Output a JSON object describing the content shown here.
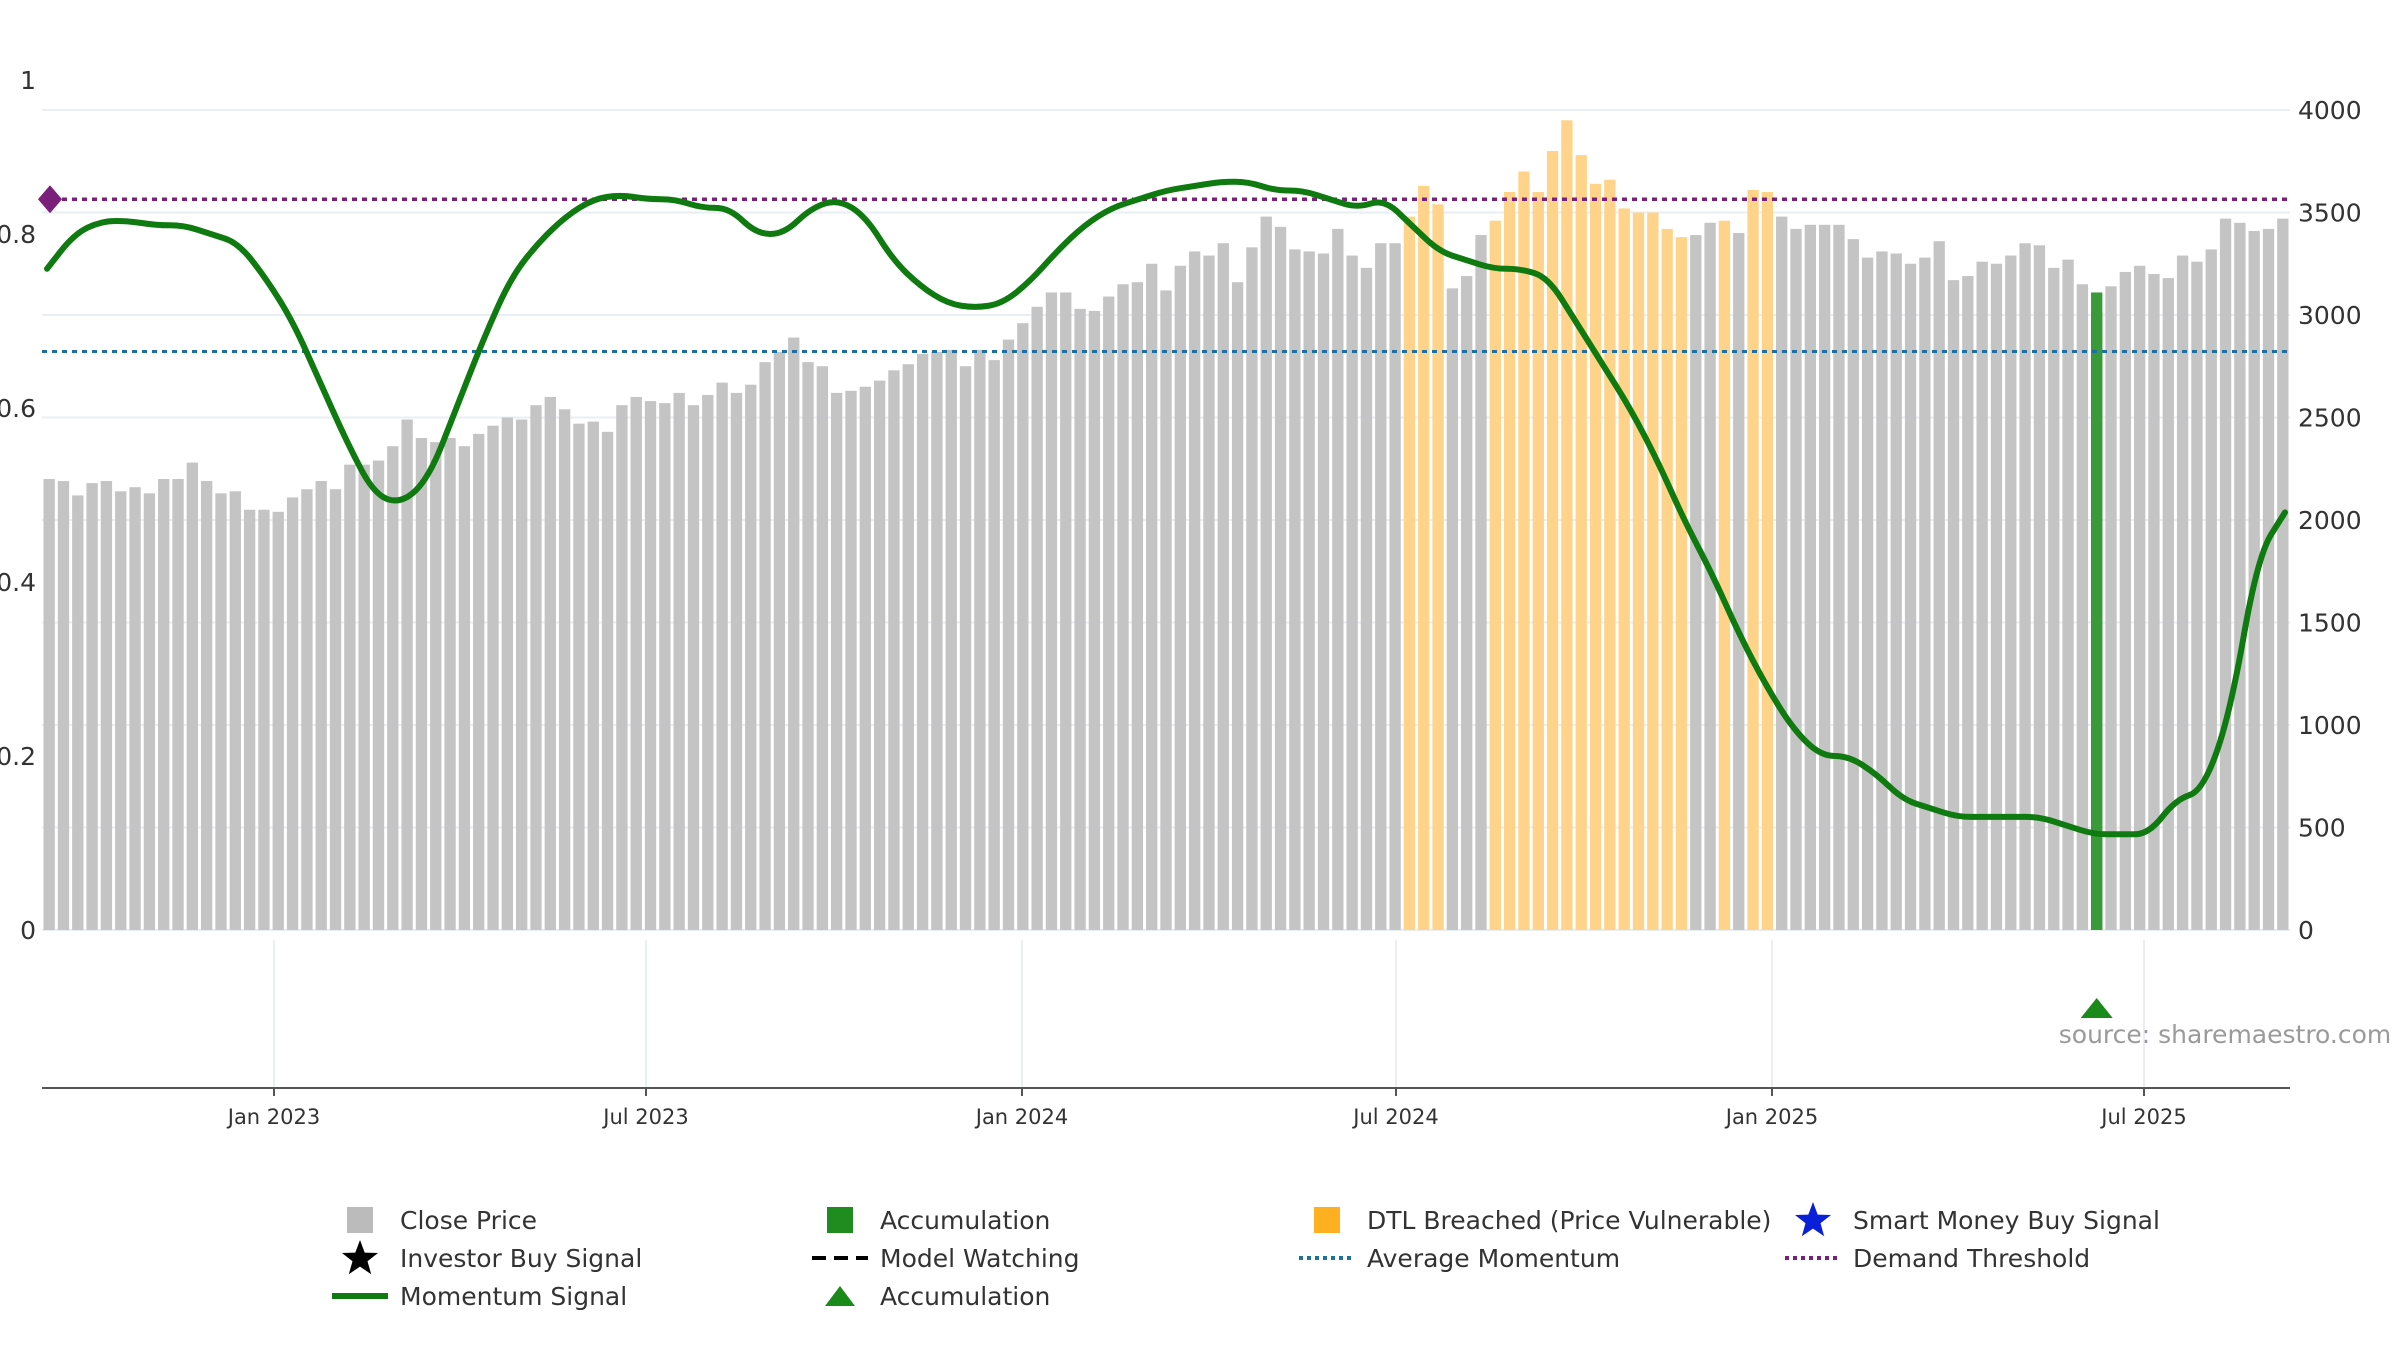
{
  "chart_data": {
    "type": "bar+line",
    "source_label": "source: sharemaestro.com",
    "x_ticks": [
      "Jan 2023",
      "Jul 2023",
      "Jan 2024",
      "Jul 2024",
      "Jan 2025",
      "Jul 2025"
    ],
    "left_axis": {
      "ticks": [
        "0",
        "0.2",
        "0.4",
        "0.6",
        "0.8",
        "1"
      ],
      "range": [
        0,
        1
      ]
    },
    "right_axis": {
      "ticks": [
        "0",
        "500",
        "1000",
        "1500",
        "2000",
        "2500",
        "3000",
        "3500",
        "4000"
      ],
      "range": [
        0,
        4000
      ]
    },
    "close_price_weekly": [
      2200,
      2190,
      2120,
      2180,
      2190,
      2140,
      2160,
      2130,
      2200,
      2200,
      2280,
      2190,
      2130,
      2140,
      2050,
      2050,
      2040,
      2110,
      2150,
      2190,
      2150,
      2270,
      2270,
      2290,
      2360,
      2490,
      2400,
      2380,
      2400,
      2360,
      2420,
      2460,
      2500,
      2490,
      2560,
      2600,
      2540,
      2470,
      2480,
      2430,
      2560,
      2600,
      2580,
      2570,
      2620,
      2560,
      2610,
      2670,
      2620,
      2660,
      2770,
      2820,
      2890,
      2770,
      2750,
      2620,
      2630,
      2650,
      2680,
      2730,
      2760,
      2810,
      2820,
      2830,
      2750,
      2830,
      2780,
      2880,
      2960,
      3040,
      3110,
      3110,
      3030,
      3020,
      3090,
      3150,
      3160,
      3250,
      3120,
      3240,
      3310,
      3290,
      3350,
      3160,
      3330,
      3480,
      3430,
      3320,
      3310,
      3300,
      3420,
      3290,
      3230,
      3350,
      3350,
      3480,
      3630,
      3540,
      3130,
      3190,
      3390,
      3460,
      3600,
      3700,
      3600,
      3800,
      3950,
      3780,
      3640,
      3660,
      3520,
      3500,
      3500,
      3420,
      3380,
      3390,
      3450,
      3460,
      3400,
      3610,
      3600,
      3480,
      3420,
      3440,
      3440,
      3440,
      3370,
      3280,
      3310,
      3300,
      3250,
      3280,
      3360,
      3170,
      3190,
      3260,
      3250,
      3290,
      3350,
      3340,
      3230,
      3270,
      3150,
      3110,
      3140,
      3210,
      3240,
      3200,
      3180,
      3290,
      3260,
      3320,
      3470,
      3450,
      3410,
      3420,
      3470
    ],
    "dtl_breached_weeks": [
      95,
      96,
      97,
      101,
      102,
      103,
      104,
      105,
      106,
      107,
      108,
      109,
      110,
      111,
      112,
      113,
      114,
      117,
      119,
      120
    ],
    "accumulation_weeks": [
      143
    ],
    "accumulation_marker_weeks": [
      143
    ],
    "momentum_signal": [
      0.76,
      0.8,
      0.815,
      0.815,
      0.81,
      0.81,
      0.8,
      0.79,
      0.75,
      0.7,
      0.63,
      0.56,
      0.5,
      0.49,
      0.52,
      0.6,
      0.68,
      0.75,
      0.79,
      0.82,
      0.84,
      0.845,
      0.84,
      0.84,
      0.83,
      0.83,
      0.8,
      0.8,
      0.83,
      0.84,
      0.82,
      0.77,
      0.74,
      0.72,
      0.715,
      0.72,
      0.745,
      0.78,
      0.81,
      0.83,
      0.84,
      0.85,
      0.855,
      0.86,
      0.86,
      0.85,
      0.85,
      0.84,
      0.83,
      0.84,
      0.81,
      0.78,
      0.77,
      0.76,
      0.76,
      0.75,
      0.7,
      0.65,
      0.6,
      0.54,
      0.47,
      0.41,
      0.34,
      0.28,
      0.23,
      0.2,
      0.2,
      0.18,
      0.15,
      0.14,
      0.13,
      0.13,
      0.13,
      0.13,
      0.12,
      0.11,
      0.11,
      0.11,
      0.15,
      0.16,
      0.25,
      0.43,
      0.48
    ],
    "average_momentum": 0.665,
    "demand_threshold": 0.84,
    "legend": [
      {
        "label": "Close Price",
        "symbol": "square",
        "color": "#bbbbbb"
      },
      {
        "label": "Accumulation",
        "symbol": "square",
        "color": "#1e8c1e"
      },
      {
        "label": "DTL Breached (Price Vulnerable)",
        "symbol": "square",
        "color": "#ffb020"
      },
      {
        "label": "Smart Money Buy Signal",
        "symbol": "star",
        "color": "#0a1fd8"
      },
      {
        "label": "Investor Buy Signal",
        "symbol": "star",
        "color": "#000000"
      },
      {
        "label": "Model Watching",
        "symbol": "dash",
        "color": "#000000"
      },
      {
        "label": "Average Momentum",
        "symbol": "dot",
        "color": "#1f6fa0"
      },
      {
        "label": "Demand Threshold",
        "symbol": "dot",
        "color": "#7a1f7a"
      },
      {
        "label": "Momentum Signal",
        "symbol": "line",
        "color": "#0f7a0f"
      },
      {
        "label": "Accumulation",
        "symbol": "triangle",
        "color": "#1a8a1a"
      }
    ]
  },
  "colors": {
    "bar_default": "#c4c4c4",
    "bar_dtl": "#ffd48a",
    "bar_accum": "#3a9a3a",
    "momentum": "#0f7a0f",
    "avg_momentum": "#1f6fa0",
    "demand_threshold": "#7a1f7a",
    "grid": "#e9eef5",
    "axis_text": "#333333",
    "source_text": "#9a9a9a"
  }
}
